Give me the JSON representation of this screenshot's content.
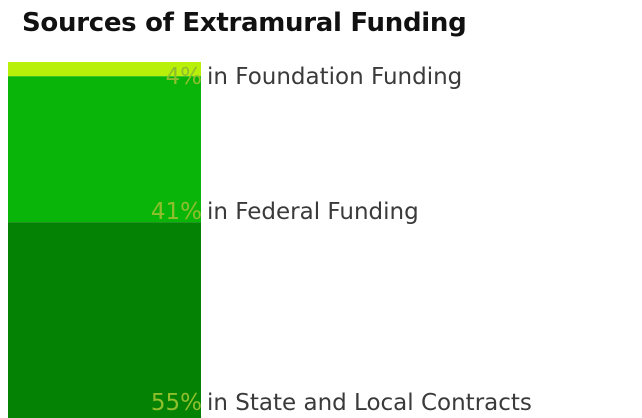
{
  "chart_data": {
    "type": "bar",
    "title": "Sources of Extramural Funding",
    "categories": [
      "Foundation Funding",
      "Federal Funding",
      "State and Local Contracts"
    ],
    "values": [
      4,
      41,
      55
    ],
    "value_unit": "%",
    "labels": [
      {
        "value": "4%",
        "text": "in Foundation Funding"
      },
      {
        "value": "41%",
        "text": "in Federal Funding"
      },
      {
        "value": "55%",
        "text": "in State and Local Contracts"
      }
    ],
    "colors": [
      "#b8f00a",
      "#0ab50a",
      "#048204"
    ],
    "label_value_color": "#8fbf2c",
    "stacked": true,
    "grid": false,
    "legend": "none"
  }
}
